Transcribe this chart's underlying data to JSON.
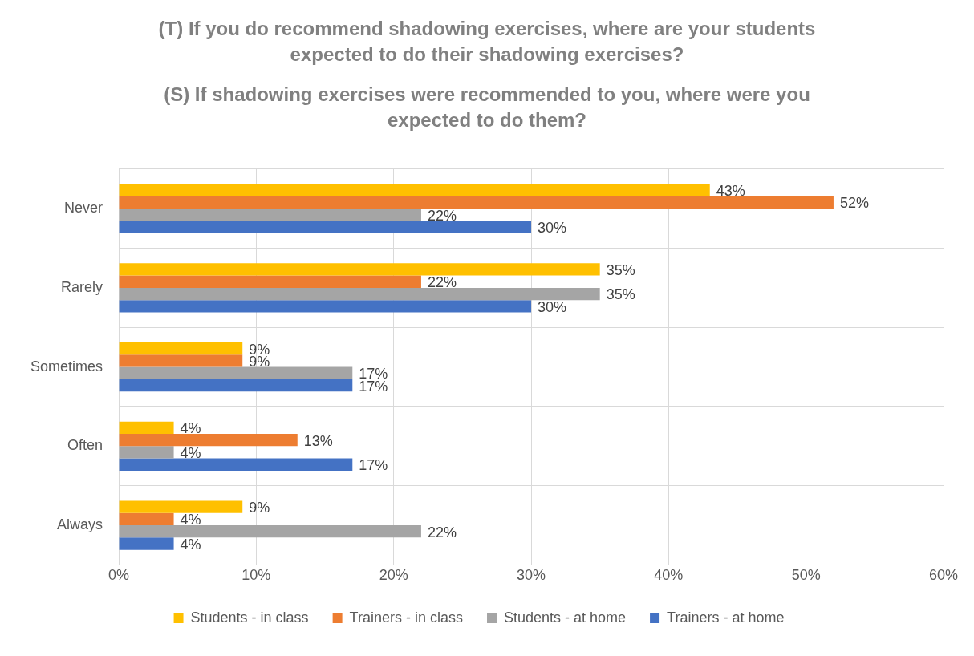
{
  "chart_data": {
    "type": "bar",
    "orientation": "horizontal",
    "title": "(T) If you do recommend shadowing exercises, where are your students expected to do their shadowing exercises?",
    "subtitle": "(S) If shadowing exercises were recommended to you, where were you expected to do them?",
    "categories": [
      "Never",
      "Rarely",
      "Sometimes",
      "Often",
      "Always"
    ],
    "series": [
      {
        "name": "Students - in class",
        "color": "#ffc000",
        "values": [
          43,
          35,
          9,
          4,
          9
        ],
        "value_labels": [
          "43%",
          "35%",
          "9%",
          "4%",
          "9%"
        ]
      },
      {
        "name": "Trainers - in class",
        "color": "#ed7d31",
        "values": [
          52,
          22,
          9,
          13,
          4
        ],
        "value_labels": [
          "52%",
          "22%",
          "9%",
          "13%",
          "4%"
        ]
      },
      {
        "name": "Students - at home",
        "color": "#a5a5a5",
        "values": [
          22,
          35,
          17,
          4,
          22
        ],
        "value_labels": [
          "22%",
          "35%",
          "17%",
          "4%",
          "22%"
        ]
      },
      {
        "name": "Trainers - at home",
        "color": "#4472c4",
        "values": [
          30,
          30,
          17,
          17,
          4
        ],
        "value_labels": [
          "30%",
          "30%",
          "17%",
          "17%",
          "4%"
        ]
      }
    ],
    "xlim": [
      0,
      60
    ],
    "xticks": [
      {
        "value": 0,
        "label": "0%"
      },
      {
        "value": 10,
        "label": "10%"
      },
      {
        "value": 20,
        "label": "20%"
      },
      {
        "value": 30,
        "label": "30%"
      },
      {
        "value": 40,
        "label": "40%"
      },
      {
        "value": 50,
        "label": "50%"
      },
      {
        "value": 60,
        "label": "60%"
      }
    ],
    "grid": true,
    "legend": "bottom"
  }
}
